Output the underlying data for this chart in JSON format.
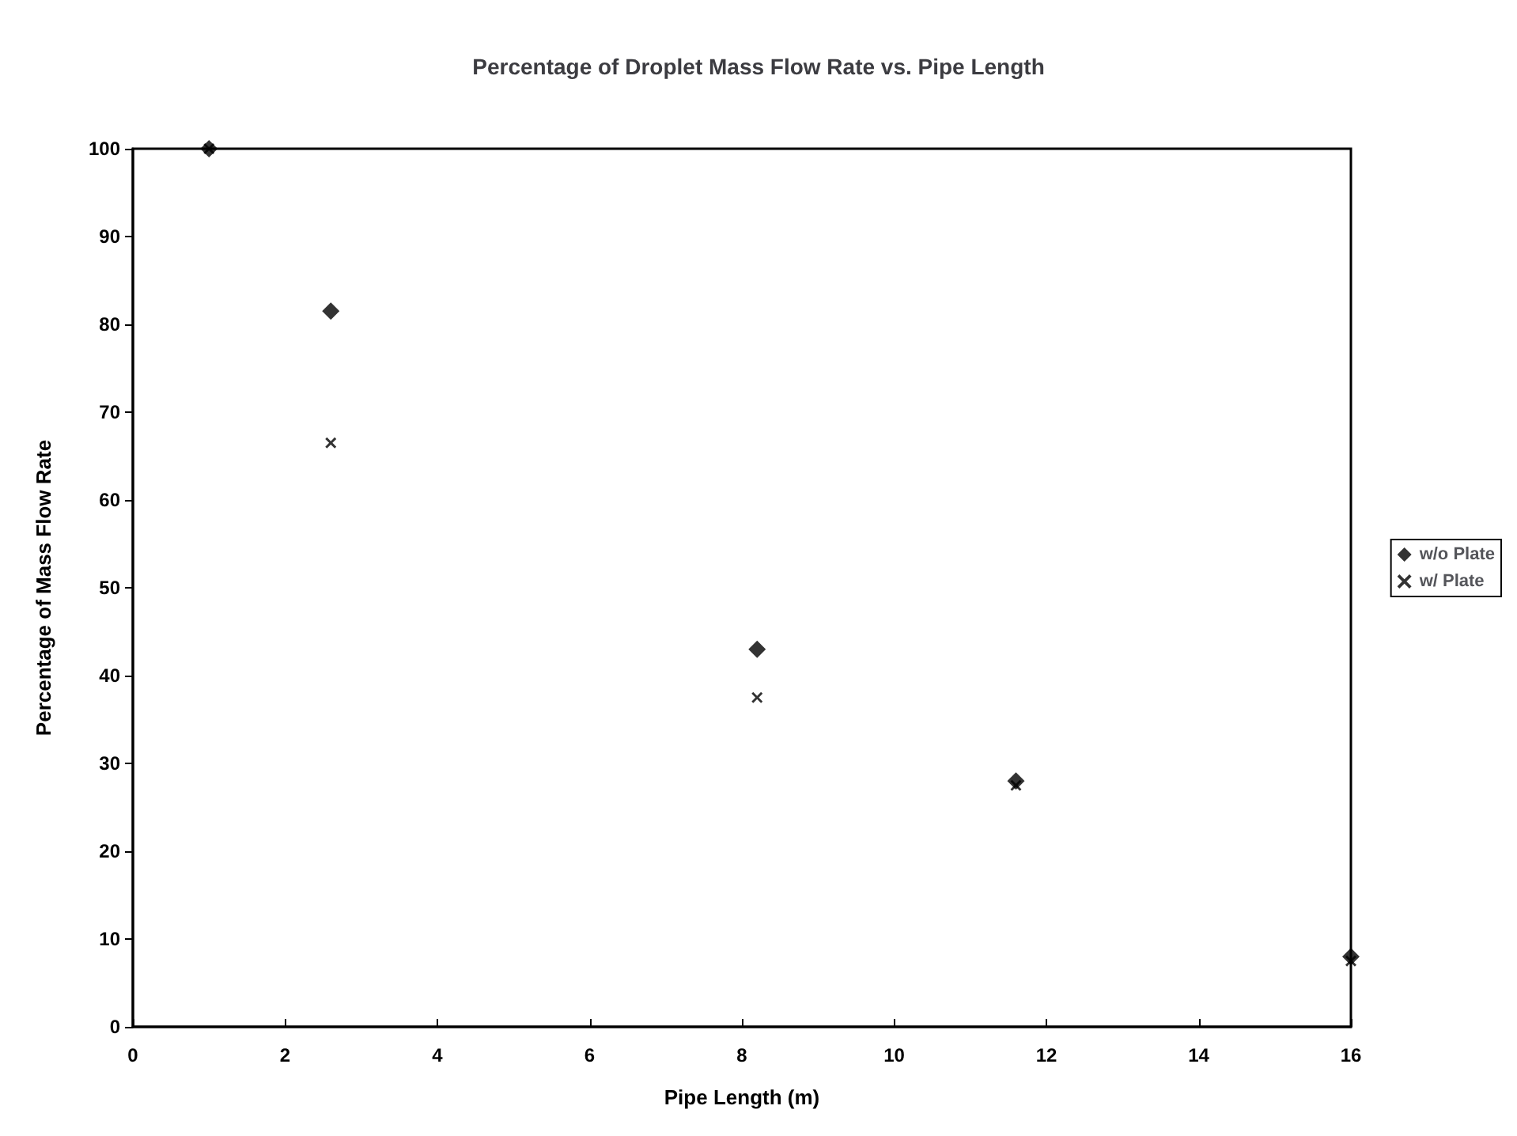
{
  "chart_data": {
    "type": "scatter",
    "title": "Percentage of Droplet Mass Flow Rate vs. Pipe Length",
    "xlabel": "Pipe Length (m)",
    "ylabel": "Percentage of Mass Flow Rate",
    "x": [
      1,
      2.6,
      8.2,
      11.6,
      16
    ],
    "series": [
      {
        "name": "w/o Plate",
        "color": "#000000",
        "marker": "diamond",
        "values": [
          100,
          81.5,
          43,
          28,
          8
        ]
      },
      {
        "name": "w/ Plate",
        "color": "#000000",
        "marker": "cross",
        "values": [
          100,
          66.5,
          37.5,
          27.5,
          7.5
        ]
      }
    ],
    "xlim": [
      0,
      16
    ],
    "xticks": [
      0,
      2,
      4,
      6,
      8,
      10,
      12,
      14,
      16
    ],
    "ylim": [
      0,
      100
    ],
    "yticks": [
      0,
      10,
      20,
      30,
      40,
      50,
      60,
      70,
      80,
      90,
      100
    ],
    "grid": false,
    "legend": "right"
  }
}
